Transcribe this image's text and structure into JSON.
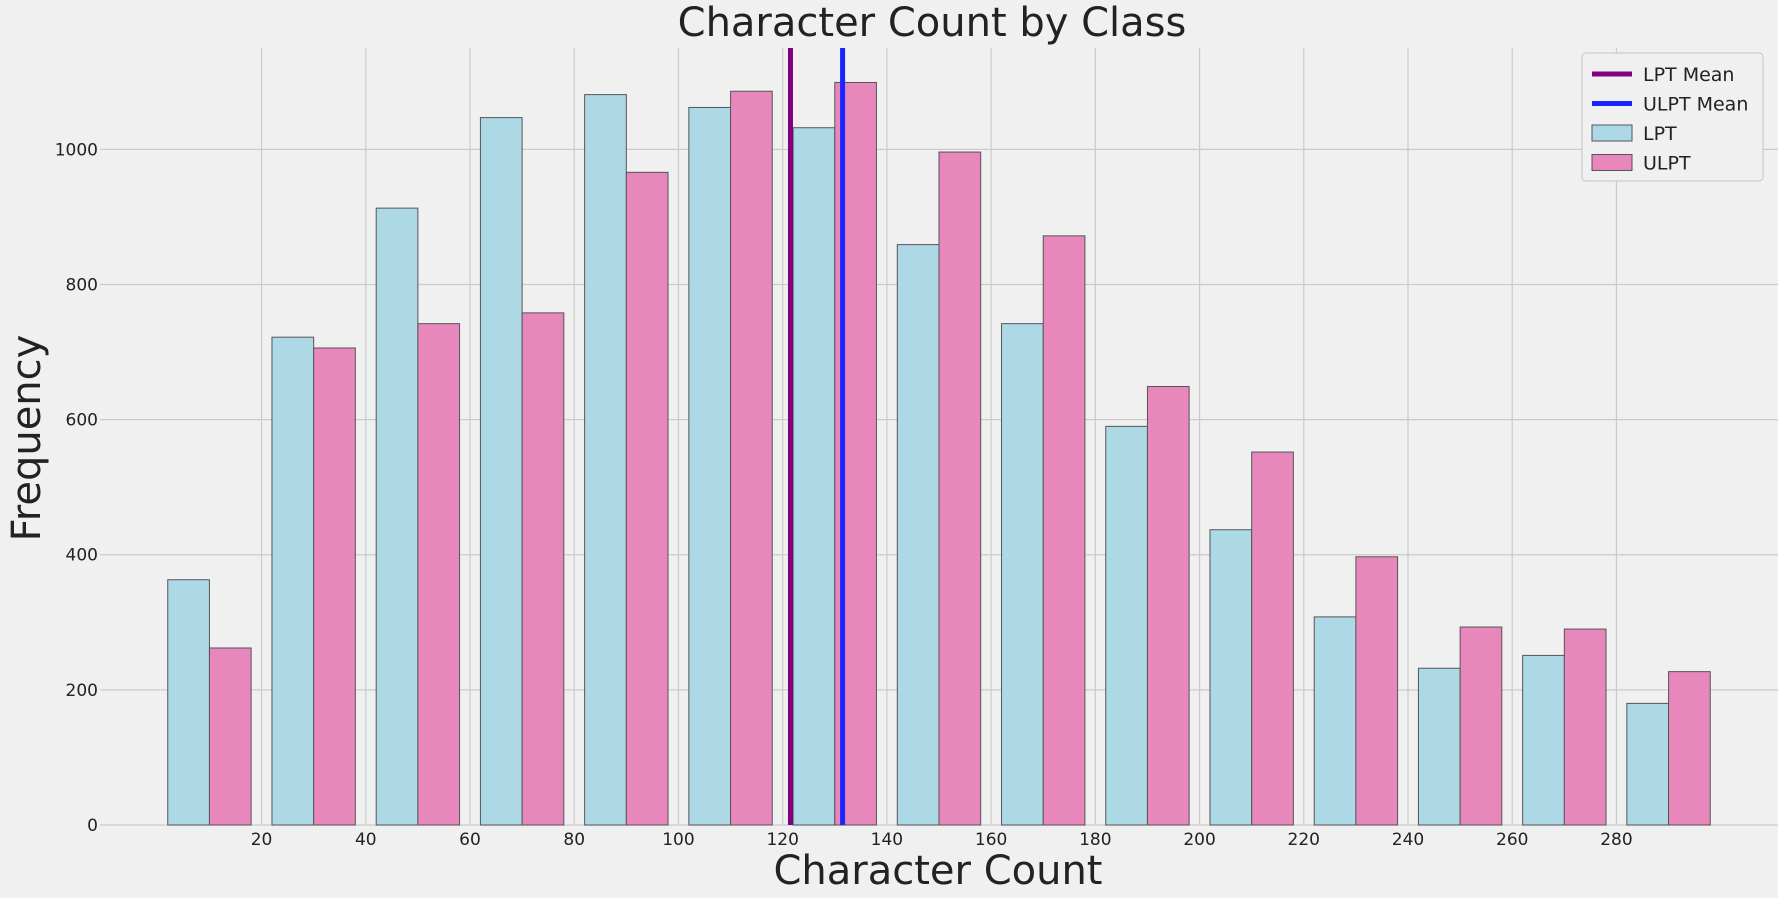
{
  "chart_data": {
    "type": "bar",
    "title": "Character Count by Class",
    "xlabel": "Character Count",
    "ylabel": "Frequency",
    "xlim": [
      -11,
      311
    ],
    "ylim": [
      0,
      1150
    ],
    "xticks": [
      20,
      40,
      60,
      80,
      100,
      120,
      140,
      160,
      180,
      200,
      220,
      240,
      260,
      280
    ],
    "yticks": [
      0,
      200,
      400,
      600,
      800,
      1000
    ],
    "grid": true,
    "legend_position": "top-right",
    "bin_edges": [
      0,
      20,
      40,
      60,
      80,
      100,
      120,
      140,
      160,
      180,
      200,
      220,
      240,
      260,
      280,
      300
    ],
    "series": [
      {
        "name": "LPT",
        "color": "#add8e6",
        "values": [
          363,
          722,
          913,
          1047,
          1081,
          1062,
          1032,
          859,
          742,
          590,
          437,
          308,
          232,
          251,
          180
        ]
      },
      {
        "name": "ULPT",
        "color": "#e787bb",
        "values": [
          262,
          706,
          742,
          758,
          966,
          1086,
          1099,
          996,
          872,
          649,
          552,
          397,
          293,
          290,
          227
        ]
      }
    ],
    "mean_lines": [
      {
        "name": "LPT Mean",
        "x": 121.5,
        "color": "#800080"
      },
      {
        "name": "ULPT Mean",
        "x": 131.5,
        "color": "#1a24ff"
      }
    ]
  }
}
